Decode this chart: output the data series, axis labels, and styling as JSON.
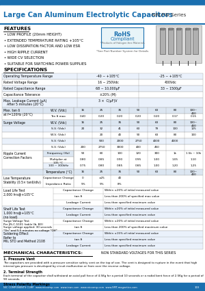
{
  "title": "Large Can Aluminum Electrolytic Capacitors",
  "series": "NRLFW Series",
  "features_title": "FEATURES",
  "features": [
    "LOW PROFILE (20mm HEIGHT)",
    "EXTENDED TEMPERATURE RATING +105°C",
    "LOW DISSIPATION FACTOR AND LOW ESR",
    "HIGH RIPPLE CURRENT",
    "WIDE CV SELECTION",
    "SUITABLE FOR SWITCHING POWER SUPPLIES"
  ],
  "rohs_line1": "RoHS",
  "rohs_line2": "Compliant",
  "rohs_line3": "*Products of Halogen-free Materials",
  "rohs_sub": "*See Part Number System for Details",
  "specs_title": "SPECIFICATIONS",
  "blue": "#1a6faf",
  "light_blue": "#c6d9f1",
  "bg": "#ffffff",
  "table_header_bg": "#dce6f1",
  "table_alt_bg": "#eaf1fb",
  "bottom_bar": "#1a6faf",
  "mech_title": "MECHANICAL CHARACTERISTICS:",
  "nonstandard_title": "NON STANDARD VOLTAGES FOR THIS SERIES",
  "mech_1_title": "1. Pressure Vent",
  "mech_1_text": "The capacitors are provided with a pressure sensitive safety vent on the top of can. The vent is designed to rupture in the event that high internal gas pressure is developed by circuit malfunction or from over the reverse voltage.",
  "mech_2_title": "2. Terminal Strength",
  "mech_2_text": "Each terminal of the capacitor shall withstand an axial pull force of 4.5Kg for a period 10 seconds or a radial bent force of 2.5Kg for a period of 90 seconds.",
  "bottom_text": "NIC COMPONENTS CORP.  www.niccomp.com  www.iewc.com  www.niccomp.com  www.SMT-magnetics.com",
  "bottom_right": "103"
}
